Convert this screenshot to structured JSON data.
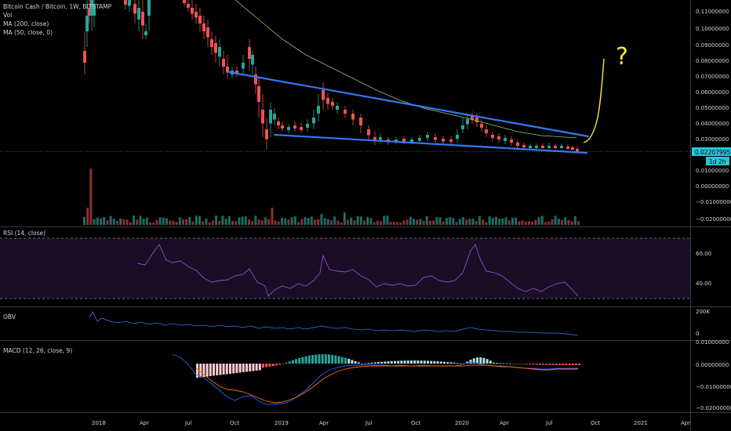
{
  "legend": {
    "symbol": "Bitcoin Cash / Bitcoin, 1W, BITSTAMP",
    "vol": "Vol",
    "ma200": "MA (200, close)",
    "ma50": "MA (50, close, 0)"
  },
  "price_axis": [
    "0.11000000",
    "0.10000000",
    "0.09000000",
    "0.08000000",
    "0.07000000",
    "0.06000000",
    "0.05000000",
    "0.04000000",
    "0.03000000",
    "0.01000000",
    "0.00000000",
    "−0.01000000",
    "−0.02000000"
  ],
  "last_price": {
    "value": "0.02207995",
    "countdown": "1d 2h"
  },
  "rsi": {
    "label": "RSI (14, close)",
    "ticks": [
      "60.00",
      "40.00"
    ]
  },
  "obv": {
    "label": "OBV",
    "ticks": [
      "200K",
      "0"
    ]
  },
  "macd": {
    "label": "MACD (12, 26, close, 9)",
    "ticks": [
      "0.01000000",
      "0.00000000",
      "−0.01000000",
      "−0.02000000"
    ]
  },
  "time_axis": [
    "2018",
    "Apr",
    "Jul",
    "Oct",
    "2019",
    "Apr",
    "Jul",
    "Oct",
    "2020",
    "Apr",
    "Jul",
    "Oct",
    "2021",
    "Apr"
  ],
  "annotation": {
    "text": "?"
  },
  "colors": {
    "up": "#26a69a",
    "down": "#ef5350",
    "trendline": "#3179f5",
    "ma": "#98c46b",
    "rsi": "#7e57c2",
    "obv": "#3179f5",
    "macd": "#2962ff",
    "signal": "#ff6d00",
    "annotation": "#f5e642",
    "price_tag": "#26c6da"
  }
}
